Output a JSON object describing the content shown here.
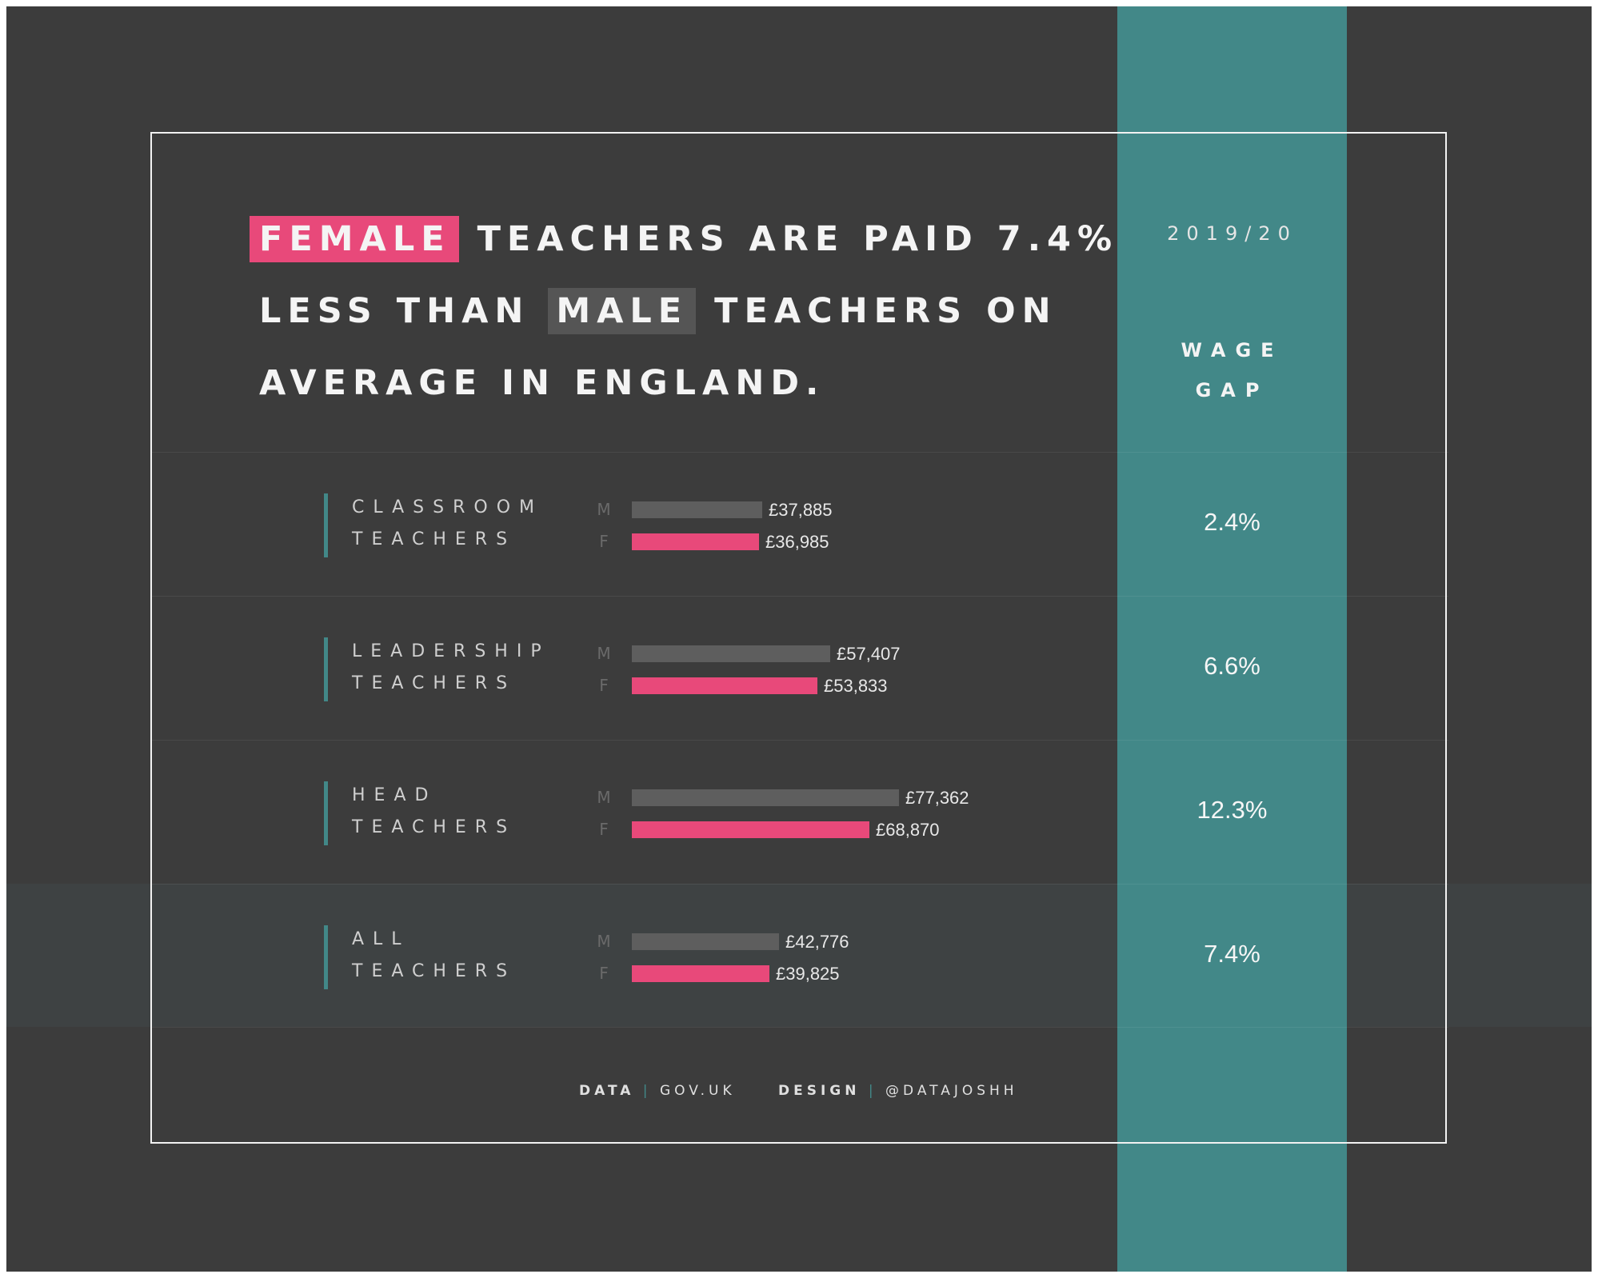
{
  "headline": {
    "line1_highlight": "FEMALE",
    "line1_rest": "TEACHERS ARE PAID 7.4%",
    "line2_pre": "LESS THAN",
    "line2_highlight": "MALE",
    "line2_rest": "TEACHERS ON",
    "line3": "AVERAGE IN ENGLAND."
  },
  "season": "2019/20",
  "wage_gap_title": [
    "WAGE",
    "GAP"
  ],
  "gender_labels": {
    "male": "M",
    "female": "F"
  },
  "credits": {
    "data_label": "DATA",
    "data_source": "GOV.UK",
    "design_label": "DESIGN",
    "design_source": "@DATAJOSHH",
    "separator": "|"
  },
  "colors": {
    "background": "#3c3c3c",
    "teal": "#428888",
    "female": "#e8497a",
    "male": "#5e5e5e",
    "frame": "#f2f2f2"
  },
  "chart_data": {
    "type": "bar",
    "categories": [
      [
        "CLASSROOM",
        "TEACHERS"
      ],
      [
        "LEADERSHIP",
        "TEACHERS"
      ],
      [
        "HEAD",
        "TEACHERS"
      ],
      [
        "ALL",
        "TEACHERS"
      ]
    ],
    "series": [
      {
        "name": "M",
        "values": [
          37885,
          57407,
          77362,
          42776
        ],
        "labels": [
          "£37,885",
          "£57,407",
          "£77,362",
          "£42,776"
        ]
      },
      {
        "name": "F",
        "values": [
          36985,
          53833,
          68870,
          39825
        ],
        "labels": [
          "£36,985",
          "£53,833",
          "£68,870",
          "£39,825"
        ]
      }
    ],
    "wage_gap": [
      "2.4%",
      "6.6%",
      "12.3%",
      "7.4%"
    ],
    "xlim": [
      0,
      90000
    ]
  }
}
